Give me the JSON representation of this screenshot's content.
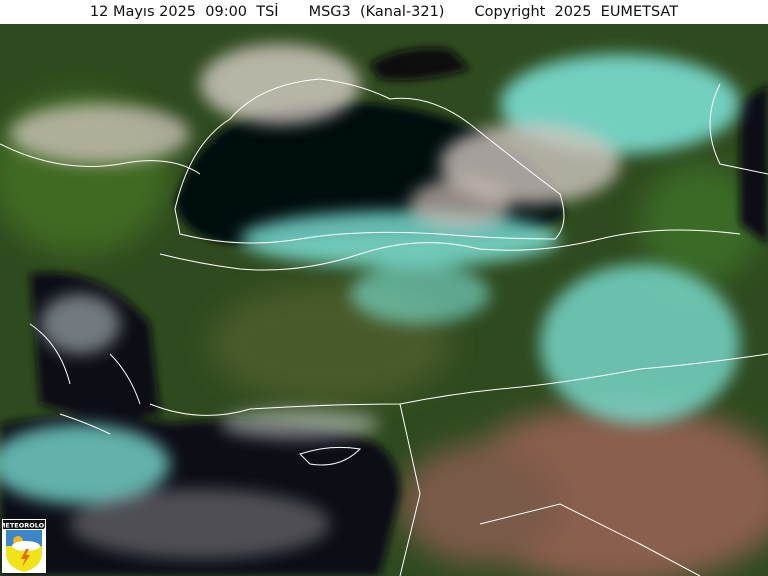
{
  "header": {
    "datetime": "12 Mayıs 2025  09:00  TSİ",
    "satellite": "MSG3  (Kanal-321)",
    "copyright": "Copyright  2025  EUMETSAT"
  },
  "logo": {
    "text": "METEOROLOJI"
  },
  "colors": {
    "land": "#2f4a1f",
    "sea": "#05070a",
    "cloud_ice": "#7fe8dc",
    "cloud_water": "#d8cfc8",
    "desert": "#8a5e4e",
    "borders": "#ffffff"
  }
}
